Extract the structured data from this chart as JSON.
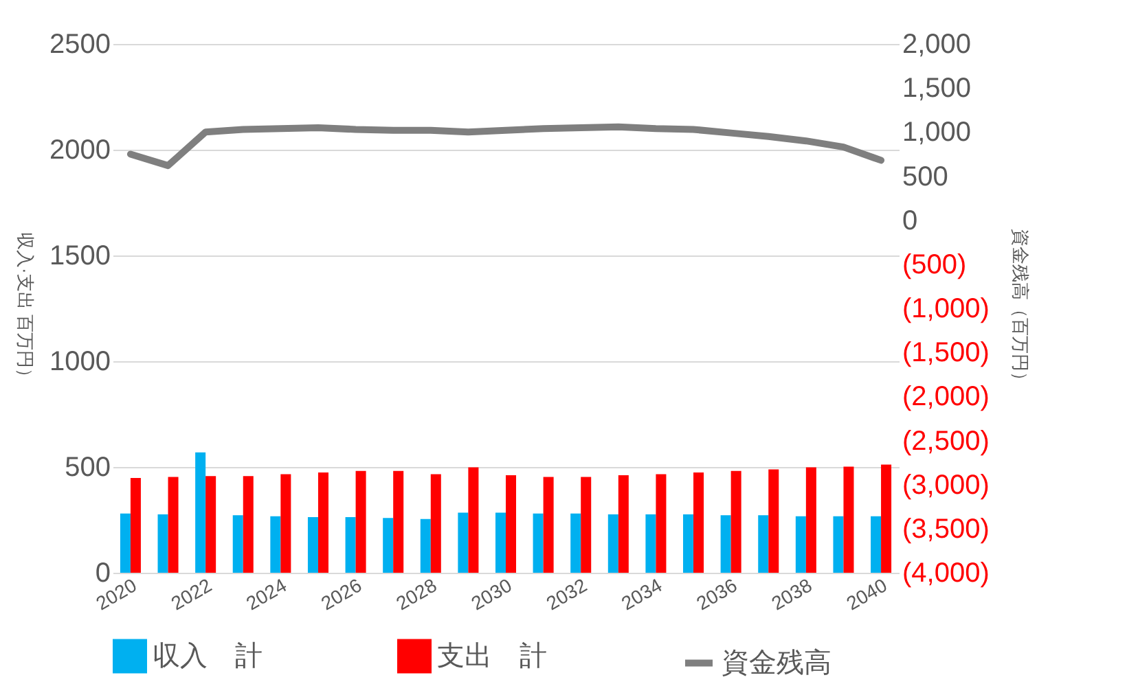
{
  "chart_data": {
    "type": "bar",
    "categories": [
      "2020",
      null,
      "2022",
      null,
      "2024",
      null,
      "2026",
      null,
      "2028",
      null,
      "2030",
      null,
      "2032",
      null,
      "2034",
      null,
      "2036",
      null,
      "2038",
      null,
      "2040"
    ],
    "series": [
      {
        "name": "収入　計",
        "color": "#00b0f0",
        "values": [
          280,
          276,
          569,
          272,
          267,
          263,
          263,
          259,
          254,
          284,
          284,
          280,
          280,
          276,
          276,
          276,
          272,
          272,
          267,
          267,
          267
        ]
      },
      {
        "name": "支出　計",
        "color": "#ff0000",
        "values": [
          448,
          453,
          457,
          457,
          466,
          474,
          481,
          481,
          466,
          498,
          461,
          453,
          453,
          461,
          466,
          474,
          481,
          489,
          498,
          502,
          511
        ]
      },
      {
        "name": "資金残高",
        "type": "line",
        "axis": "y2",
        "color": "#7f7f7f",
        "values": [
          750,
          620,
          1000,
          1030,
          1040,
          1050,
          1030,
          1020,
          1020,
          1000,
          1020,
          1040,
          1050,
          1060,
          1040,
          1030,
          990,
          950,
          900,
          830,
          680
        ]
      }
    ],
    "ylabel": "収入·支出 百万円）",
    "y2label": "資金残高（百万円）",
    "ylim": [
      0,
      2500
    ],
    "yticks": [
      0,
      500,
      1000,
      1500,
      2000,
      2500
    ],
    "y2lim": [
      -4000,
      2000
    ],
    "y2ticks": [
      {
        "value": -4000,
        "label": "(4,000)"
      },
      {
        "value": -3500,
        "label": "(3,500)"
      },
      {
        "value": -3000,
        "label": "(3,000)"
      },
      {
        "value": -2500,
        "label": "(2,500)"
      },
      {
        "value": -2000,
        "label": "(2,000)"
      },
      {
        "value": -1500,
        "label": "(1,500)"
      },
      {
        "value": -1000,
        "label": "(1,000)"
      },
      {
        "value": -500,
        "label": "(500)"
      },
      {
        "value": 0,
        "label": "0"
      },
      {
        "value": 500,
        "label": "500"
      },
      {
        "value": 1000,
        "label": "1,000"
      },
      {
        "value": 1500,
        "label": "1,500"
      },
      {
        "value": 2000,
        "label": "2,000"
      }
    ],
    "grid": "y",
    "legend": "bottom"
  }
}
